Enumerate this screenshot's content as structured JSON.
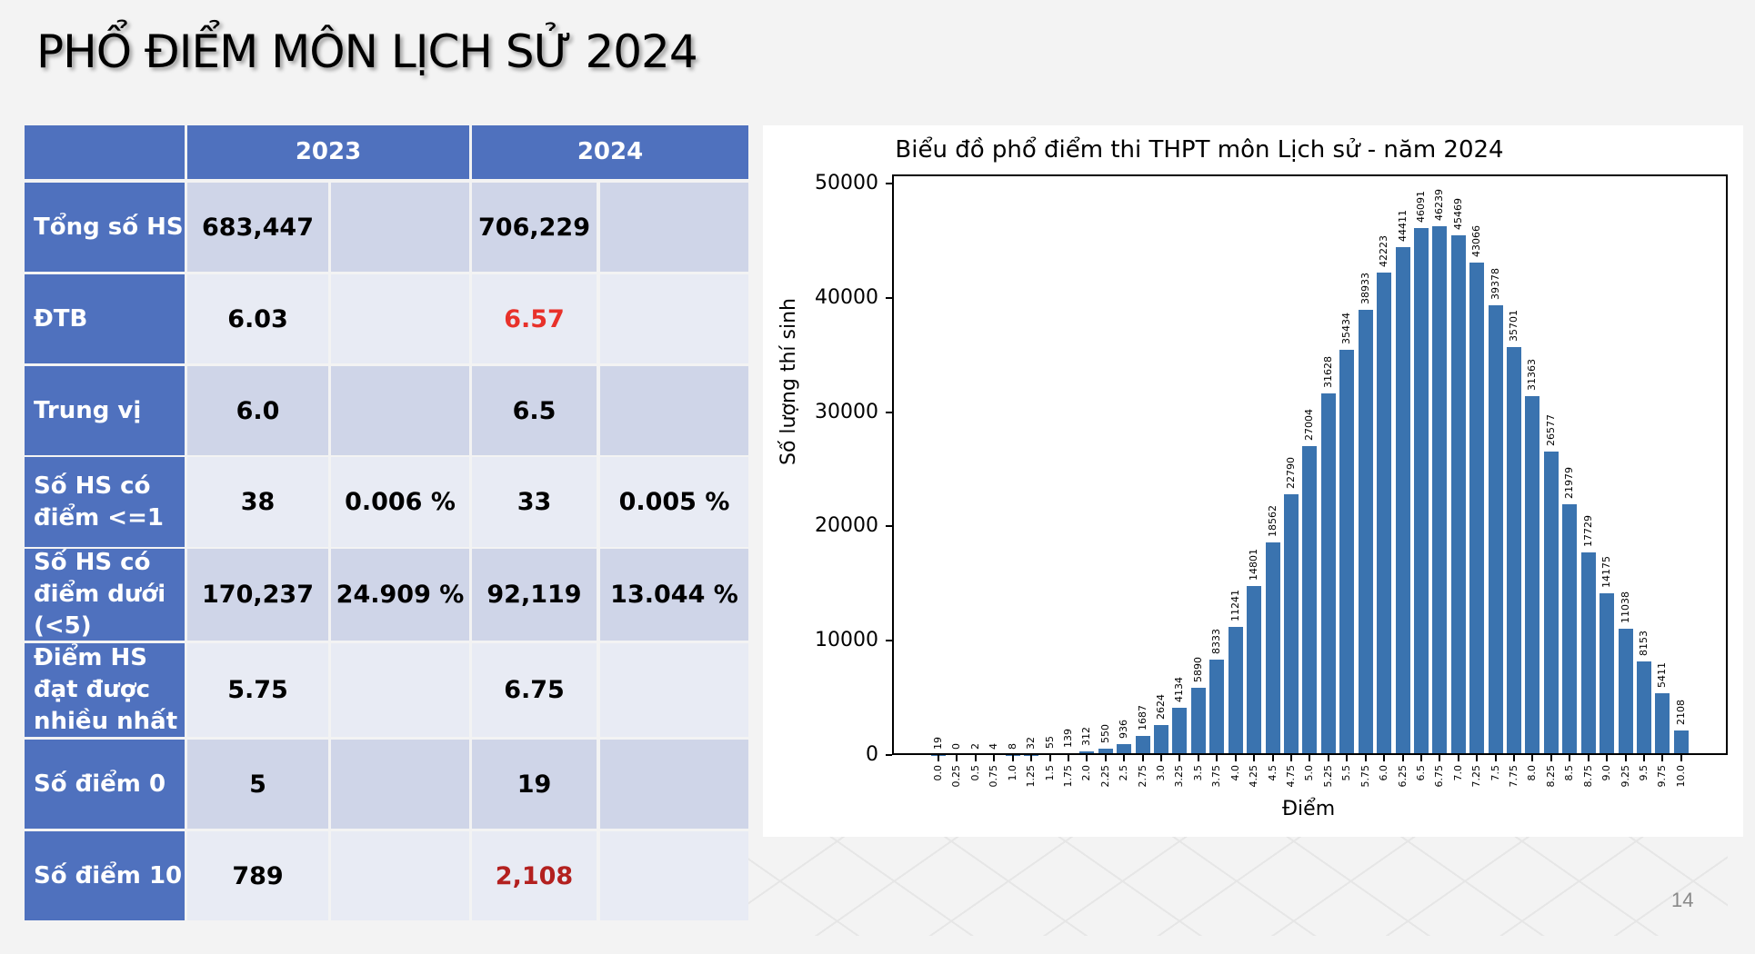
{
  "page": {
    "title": "PHỔ ĐIỂM MÔN LỊCH SỬ 2024",
    "page_number": "14"
  },
  "table": {
    "headers": [
      "",
      "2023",
      "2024"
    ],
    "rows": [
      {
        "label": "Tổng số HS",
        "v2023": "683,447",
        "p2023": "",
        "v2024": "706,229",
        "p2024": ""
      },
      {
        "label": "ĐTB",
        "v2023": "6.03",
        "p2023": "",
        "v2024": "6.57",
        "p2024": ""
      },
      {
        "label": "Trung vị",
        "v2023": "6.0",
        "p2023": "",
        "v2024": "6.5",
        "p2024": ""
      },
      {
        "label": "Số HS có điểm <=1",
        "v2023": "38",
        "p2023": "0.006 %",
        "v2024": "33",
        "p2024": "0.005 %"
      },
      {
        "label": "Số HS có điểm dưới (<5)",
        "v2023": "170,237",
        "p2023": "24.909 %",
        "v2024": "92,119",
        "p2024": "13.044 %"
      },
      {
        "label": "Điểm HS đạt được nhiều nhất",
        "v2023": "5.75",
        "p2023": "",
        "v2024": "6.75",
        "p2024": ""
      },
      {
        "label": "Số điểm 0",
        "v2023": "5",
        "p2023": "",
        "v2024": "19",
        "p2024": ""
      },
      {
        "label": "Số điểm 10",
        "v2023": "789",
        "p2023": "",
        "v2024": "2,108",
        "p2024": ""
      }
    ],
    "colors": {
      "header_bg": "#4f71be",
      "row_dark": "#cfd5e8",
      "row_light": "#e8ebf4",
      "highlight_red": "#e8312a",
      "highlight_dark_red": "#b3201f"
    }
  },
  "chart_data": {
    "type": "bar",
    "title": "Biểu đồ phổ điểm thi THPT môn Lịch sử - năm 2024",
    "xlabel": "Điểm",
    "ylabel": "Số lượng thí sinh",
    "ylim": [
      0,
      50000
    ],
    "yticks": [
      "0",
      "10000",
      "20000",
      "30000",
      "40000",
      "50000"
    ],
    "grid": false,
    "bar_color": "#3a73af",
    "categories": [
      "0.0",
      "0.25",
      "0.5",
      "0.75",
      "1.0",
      "1.25",
      "1.5",
      "1.75",
      "2.0",
      "2.25",
      "2.5",
      "2.75",
      "3.0",
      "3.25",
      "3.5",
      "3.75",
      "4.0",
      "4.25",
      "4.5",
      "4.75",
      "5.0",
      "5.25",
      "5.5",
      "5.75",
      "6.0",
      "6.25",
      "6.5",
      "6.75",
      "7.0",
      "7.25",
      "7.5",
      "7.75",
      "8.0",
      "8.25",
      "8.5",
      "8.75",
      "9.0",
      "9.25",
      "9.5",
      "9.75",
      "10.0"
    ],
    "values": [
      19,
      0,
      2,
      4,
      8,
      32,
      55,
      139,
      312,
      550,
      936,
      1687,
      2624,
      4134,
      5890,
      8333,
      11241,
      14801,
      18562,
      22790,
      27004,
      31628,
      35434,
      38933,
      42223,
      44411,
      46091,
      46239,
      45469,
      43066,
      39378,
      35701,
      31363,
      26577,
      21979,
      17729,
      14175,
      11038,
      8153,
      5411,
      2108
    ]
  }
}
